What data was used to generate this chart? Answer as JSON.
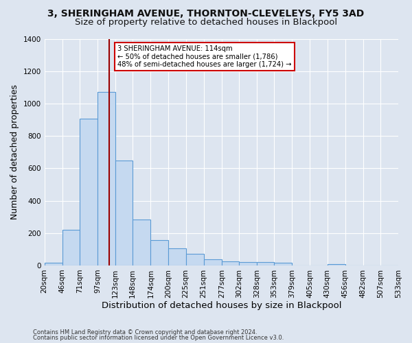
{
  "title1": "3, SHERINGHAM AVENUE, THORNTON-CLEVELEYS, FY5 3AD",
  "title2": "Size of property relative to detached houses in Blackpool",
  "xlabel": "Distribution of detached houses by size in Blackpool",
  "ylabel": "Number of detached properties",
  "footnote1": "Contains HM Land Registry data © Crown copyright and database right 2024.",
  "footnote2": "Contains public sector information licensed under the Open Government Licence v3.0.",
  "bin_edges": [
    20,
    46,
    71,
    97,
    123,
    148,
    174,
    200,
    225,
    251,
    277,
    302,
    328,
    353,
    379,
    405,
    430,
    456,
    482,
    507,
    533
  ],
  "bar_heights": [
    18,
    220,
    905,
    1070,
    648,
    283,
    155,
    105,
    70,
    38,
    27,
    22,
    20,
    15,
    0,
    0,
    10,
    0,
    0,
    0
  ],
  "bar_color": "#c5d9f0",
  "bar_edge_color": "#5b9bd5",
  "property_size": 114,
  "vline_color": "#990000",
  "annotation_line1": "3 SHERINGHAM AVENUE: 114sqm",
  "annotation_line2": "← 50% of detached houses are smaller (1,786)",
  "annotation_line3": "48% of semi-detached houses are larger (1,724) →",
  "annotation_box_color": "#ffffff",
  "annotation_box_edge": "#cc0000",
  "ylim": [
    0,
    1400
  ],
  "background_color": "#dde5f0",
  "grid_color": "#ffffff",
  "title_fontsize": 10,
  "subtitle_fontsize": 9.5,
  "axis_label_fontsize": 9,
  "tick_fontsize": 7.5,
  "footnote_fontsize": 6.0
}
